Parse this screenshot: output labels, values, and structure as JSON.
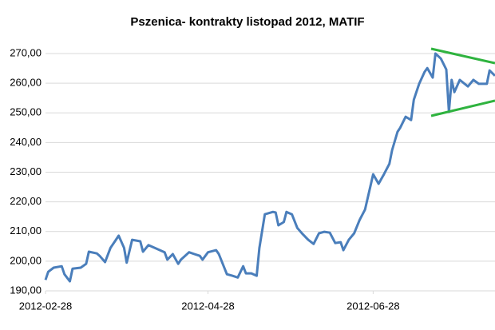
{
  "chart_data": {
    "type": "line",
    "title": "Pszenica- kontrakty listopad 2012, MATIF",
    "x": [
      "2012-02-28",
      "2012-02-29",
      "2012-03-02",
      "2012-03-05",
      "2012-03-06",
      "2012-03-08",
      "2012-03-09",
      "2012-03-12",
      "2012-03-14",
      "2012-03-15",
      "2012-03-18",
      "2012-03-19",
      "2012-03-21",
      "2012-03-23",
      "2012-03-25",
      "2012-03-26",
      "2012-03-28",
      "2012-03-29",
      "2012-03-31",
      "2012-04-03",
      "2012-04-04",
      "2012-04-06",
      "2012-04-09",
      "2012-04-12",
      "2012-04-13",
      "2012-04-15",
      "2012-04-17",
      "2012-04-18",
      "2012-04-21",
      "2012-04-23",
      "2012-04-25",
      "2012-04-26",
      "2012-04-28",
      "2012-05-01",
      "2012-05-02",
      "2012-05-05",
      "2012-05-07",
      "2012-05-09",
      "2012-05-11",
      "2012-05-12",
      "2012-05-14",
      "2012-05-16",
      "2012-05-17",
      "2012-05-19",
      "2012-05-22",
      "2012-05-23",
      "2012-05-24",
      "2012-05-26",
      "2012-05-27",
      "2012-05-29",
      "2012-05-31",
      "2012-06-02",
      "2012-06-04",
      "2012-06-06",
      "2012-06-08",
      "2012-06-10",
      "2012-06-12",
      "2012-06-14",
      "2012-06-16",
      "2012-06-17",
      "2012-06-19",
      "2012-06-21",
      "2012-06-23",
      "2012-06-25",
      "2012-06-27",
      "2012-06-28",
      "2012-06-30",
      "2012-07-02",
      "2012-07-04",
      "2012-07-05",
      "2012-07-07",
      "2012-07-08",
      "2012-07-10",
      "2012-07-12",
      "2012-07-13",
      "2012-07-15",
      "2012-07-17",
      "2012-07-18",
      "2012-07-20",
      "2012-07-21",
      "2012-07-23",
      "2012-07-25",
      "2012-07-26",
      "2012-07-27",
      "2012-07-28",
      "2012-07-30",
      "2012-08-02",
      "2012-08-04",
      "2012-08-06",
      "2012-08-09",
      "2012-08-10",
      "2012-08-12"
    ],
    "series": [
      {
        "name": "MATIF",
        "color": "#4a7ebb",
        "values": [
          193.7,
          196.4,
          197.8,
          198.3,
          195.6,
          193.2,
          197.5,
          197.8,
          199.1,
          203.2,
          202.6,
          201.8,
          199.7,
          204.5,
          207.2,
          208.6,
          204.5,
          199.5,
          207.2,
          206.7,
          203.2,
          205.4,
          204.2,
          203.0,
          200.5,
          202.4,
          199.1,
          200.5,
          203.0,
          202.4,
          201.8,
          200.5,
          203.0,
          203.7,
          202.4,
          195.6,
          195.1,
          194.5,
          198.3,
          195.9,
          195.9,
          195.1,
          204.5,
          215.8,
          216.6,
          216.4,
          212.1,
          213.2,
          216.6,
          215.8,
          211.2,
          209.1,
          207.2,
          205.8,
          209.4,
          209.9,
          209.6,
          206.1,
          206.4,
          203.7,
          207.2,
          209.4,
          213.9,
          217.4,
          225.3,
          229.3,
          226.1,
          229.3,
          232.8,
          237.4,
          243.6,
          245.0,
          248.7,
          247.6,
          254.4,
          259.8,
          263.8,
          265.1,
          261.9,
          270.0,
          268.3,
          264.6,
          250.3,
          261.1,
          257.0,
          261.1,
          258.9,
          261.1,
          259.8,
          259.8,
          264.3,
          262.5
        ]
      }
    ],
    "xlim": [
      "2012-02-28",
      "2012-08-12"
    ],
    "xticks": [
      "2012-02-28",
      "2012-04-28",
      "2012-06-28"
    ],
    "ylim": [
      190,
      270
    ],
    "yticks": [
      {
        "value": 190,
        "label": "190,00"
      },
      {
        "value": 200,
        "label": "200,00"
      },
      {
        "value": 210,
        "label": "210,00"
      },
      {
        "value": 220,
        "label": "220,00"
      },
      {
        "value": 230,
        "label": "230,00"
      },
      {
        "value": 240,
        "label": "240,00"
      },
      {
        "value": 250,
        "label": "250,00"
      },
      {
        "value": 260,
        "label": "260,00"
      },
      {
        "value": 270,
        "label": "270,00"
      }
    ],
    "grid": true
  }
}
